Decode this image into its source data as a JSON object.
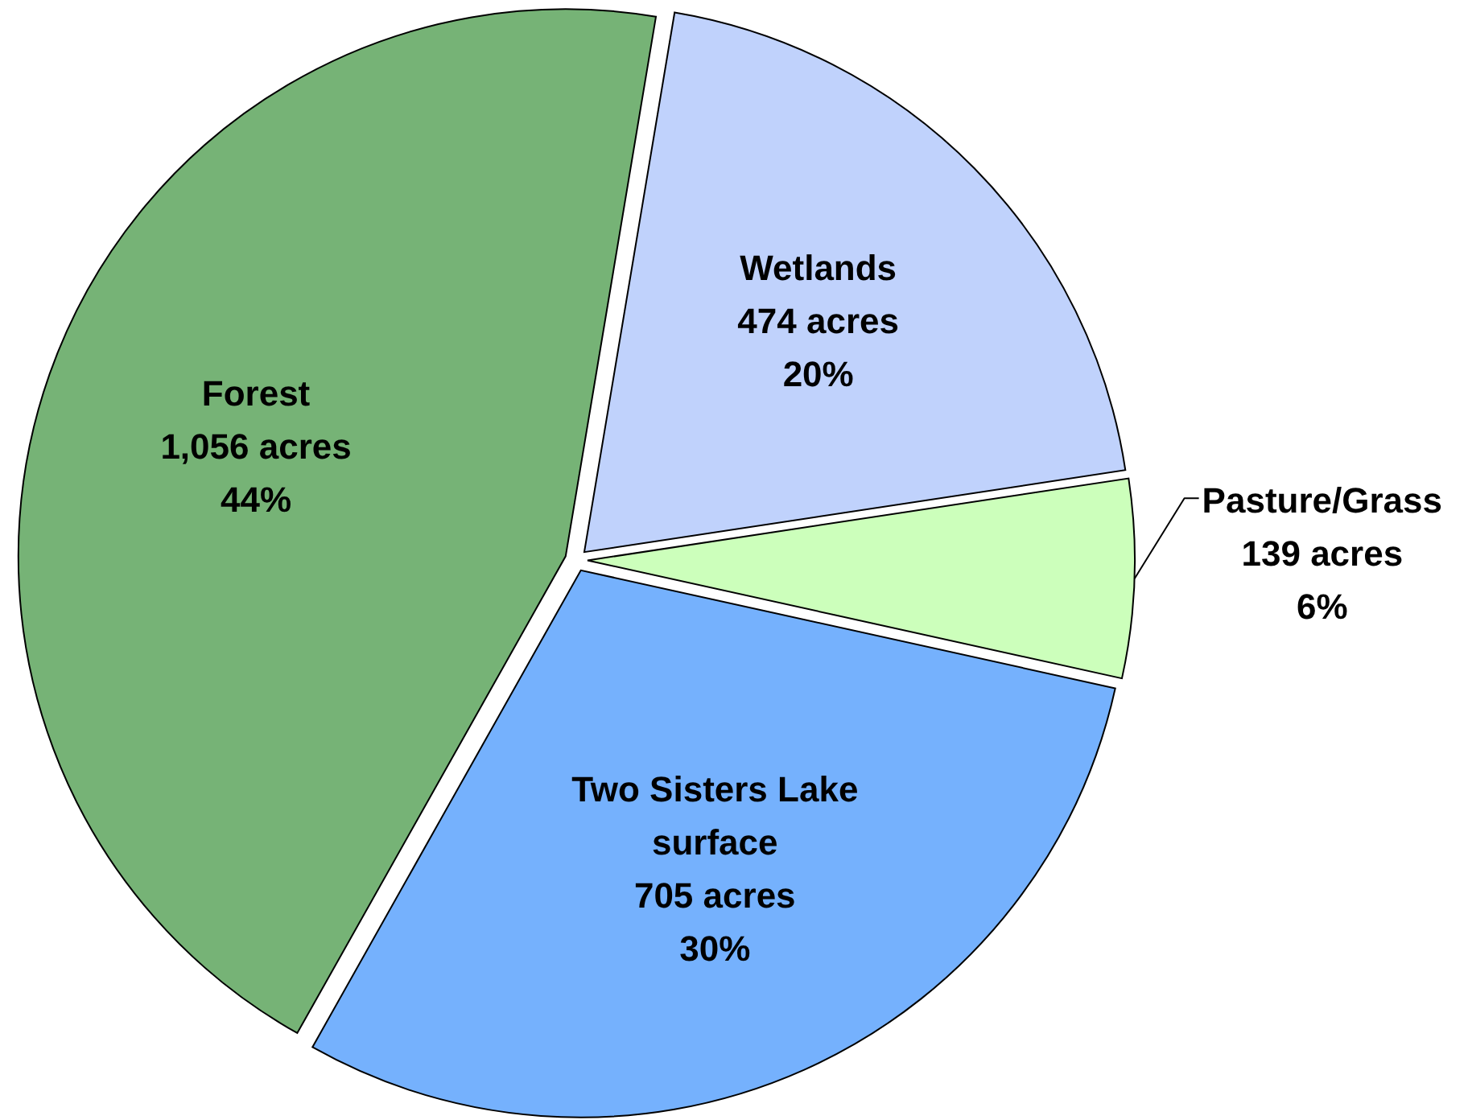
{
  "chart_data": {
    "type": "pie",
    "categories": [
      "Wetlands",
      "Pasture/Grass",
      "Two Sisters Lake surface",
      "Forest"
    ],
    "values": [
      474,
      139,
      705,
      1056
    ],
    "colors": [
      "#c0d2fc",
      "#ccffbb",
      "#75b1fd",
      "#76b376"
    ],
    "value_labels": [
      "474 acres\n20%",
      "139 acres\n6%",
      "705 acres\n30%",
      "1,056 acres\n44%"
    ]
  }
}
